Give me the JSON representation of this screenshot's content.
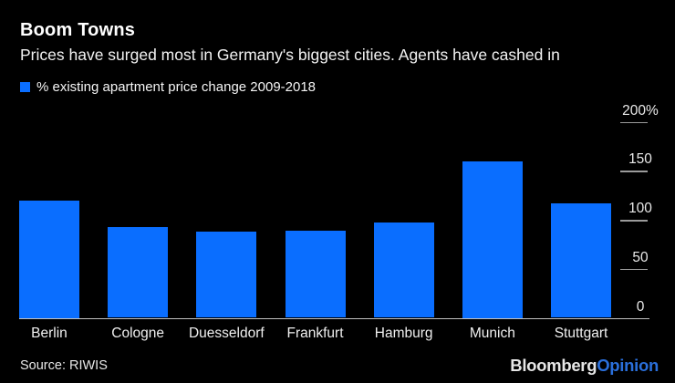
{
  "header": {
    "title": "Boom Towns",
    "subtitle": "Prices have surged most in Germany's biggest cities. Agents have cashed in"
  },
  "legend": {
    "label": "% existing apartment price change 2009-2018",
    "swatch_color": "#0a6eff"
  },
  "chart_data": {
    "type": "bar",
    "categories": [
      "Berlin",
      "Cologne",
      "Duesseldorf",
      "Frankfurt",
      "Hamburg",
      "Munich",
      "Stuttgart"
    ],
    "values": [
      120,
      93,
      88,
      89,
      97,
      160,
      117
    ],
    "title": "Boom Towns",
    "subtitle": "Prices have surged most in Germany's biggest cities. Agents have cashed in",
    "series_label": "% existing apartment price change 2009-2018",
    "xlabel": "",
    "ylabel": "",
    "ylim": [
      0,
      200
    ],
    "yticks": [
      0,
      50,
      100,
      150,
      200
    ],
    "ytick_labels": [
      "0",
      "50",
      "100",
      "150",
      "200%"
    ],
    "axis_side": "right",
    "grid": false,
    "legend_position": "top-left",
    "bar_color": "#0a6eff",
    "background_color": "#000000"
  },
  "footer": {
    "source": "Source: RIWIS",
    "logo": {
      "part1": "Bloomberg",
      "part2": "Opinion",
      "part2_color": "#2a6fdb"
    }
  },
  "colors": {
    "background": "#000000",
    "bar": "#0a6eff",
    "axis_line": "#c0c0c0",
    "tick_dash": "#9b9b9b",
    "title_text": "#ffffff"
  }
}
